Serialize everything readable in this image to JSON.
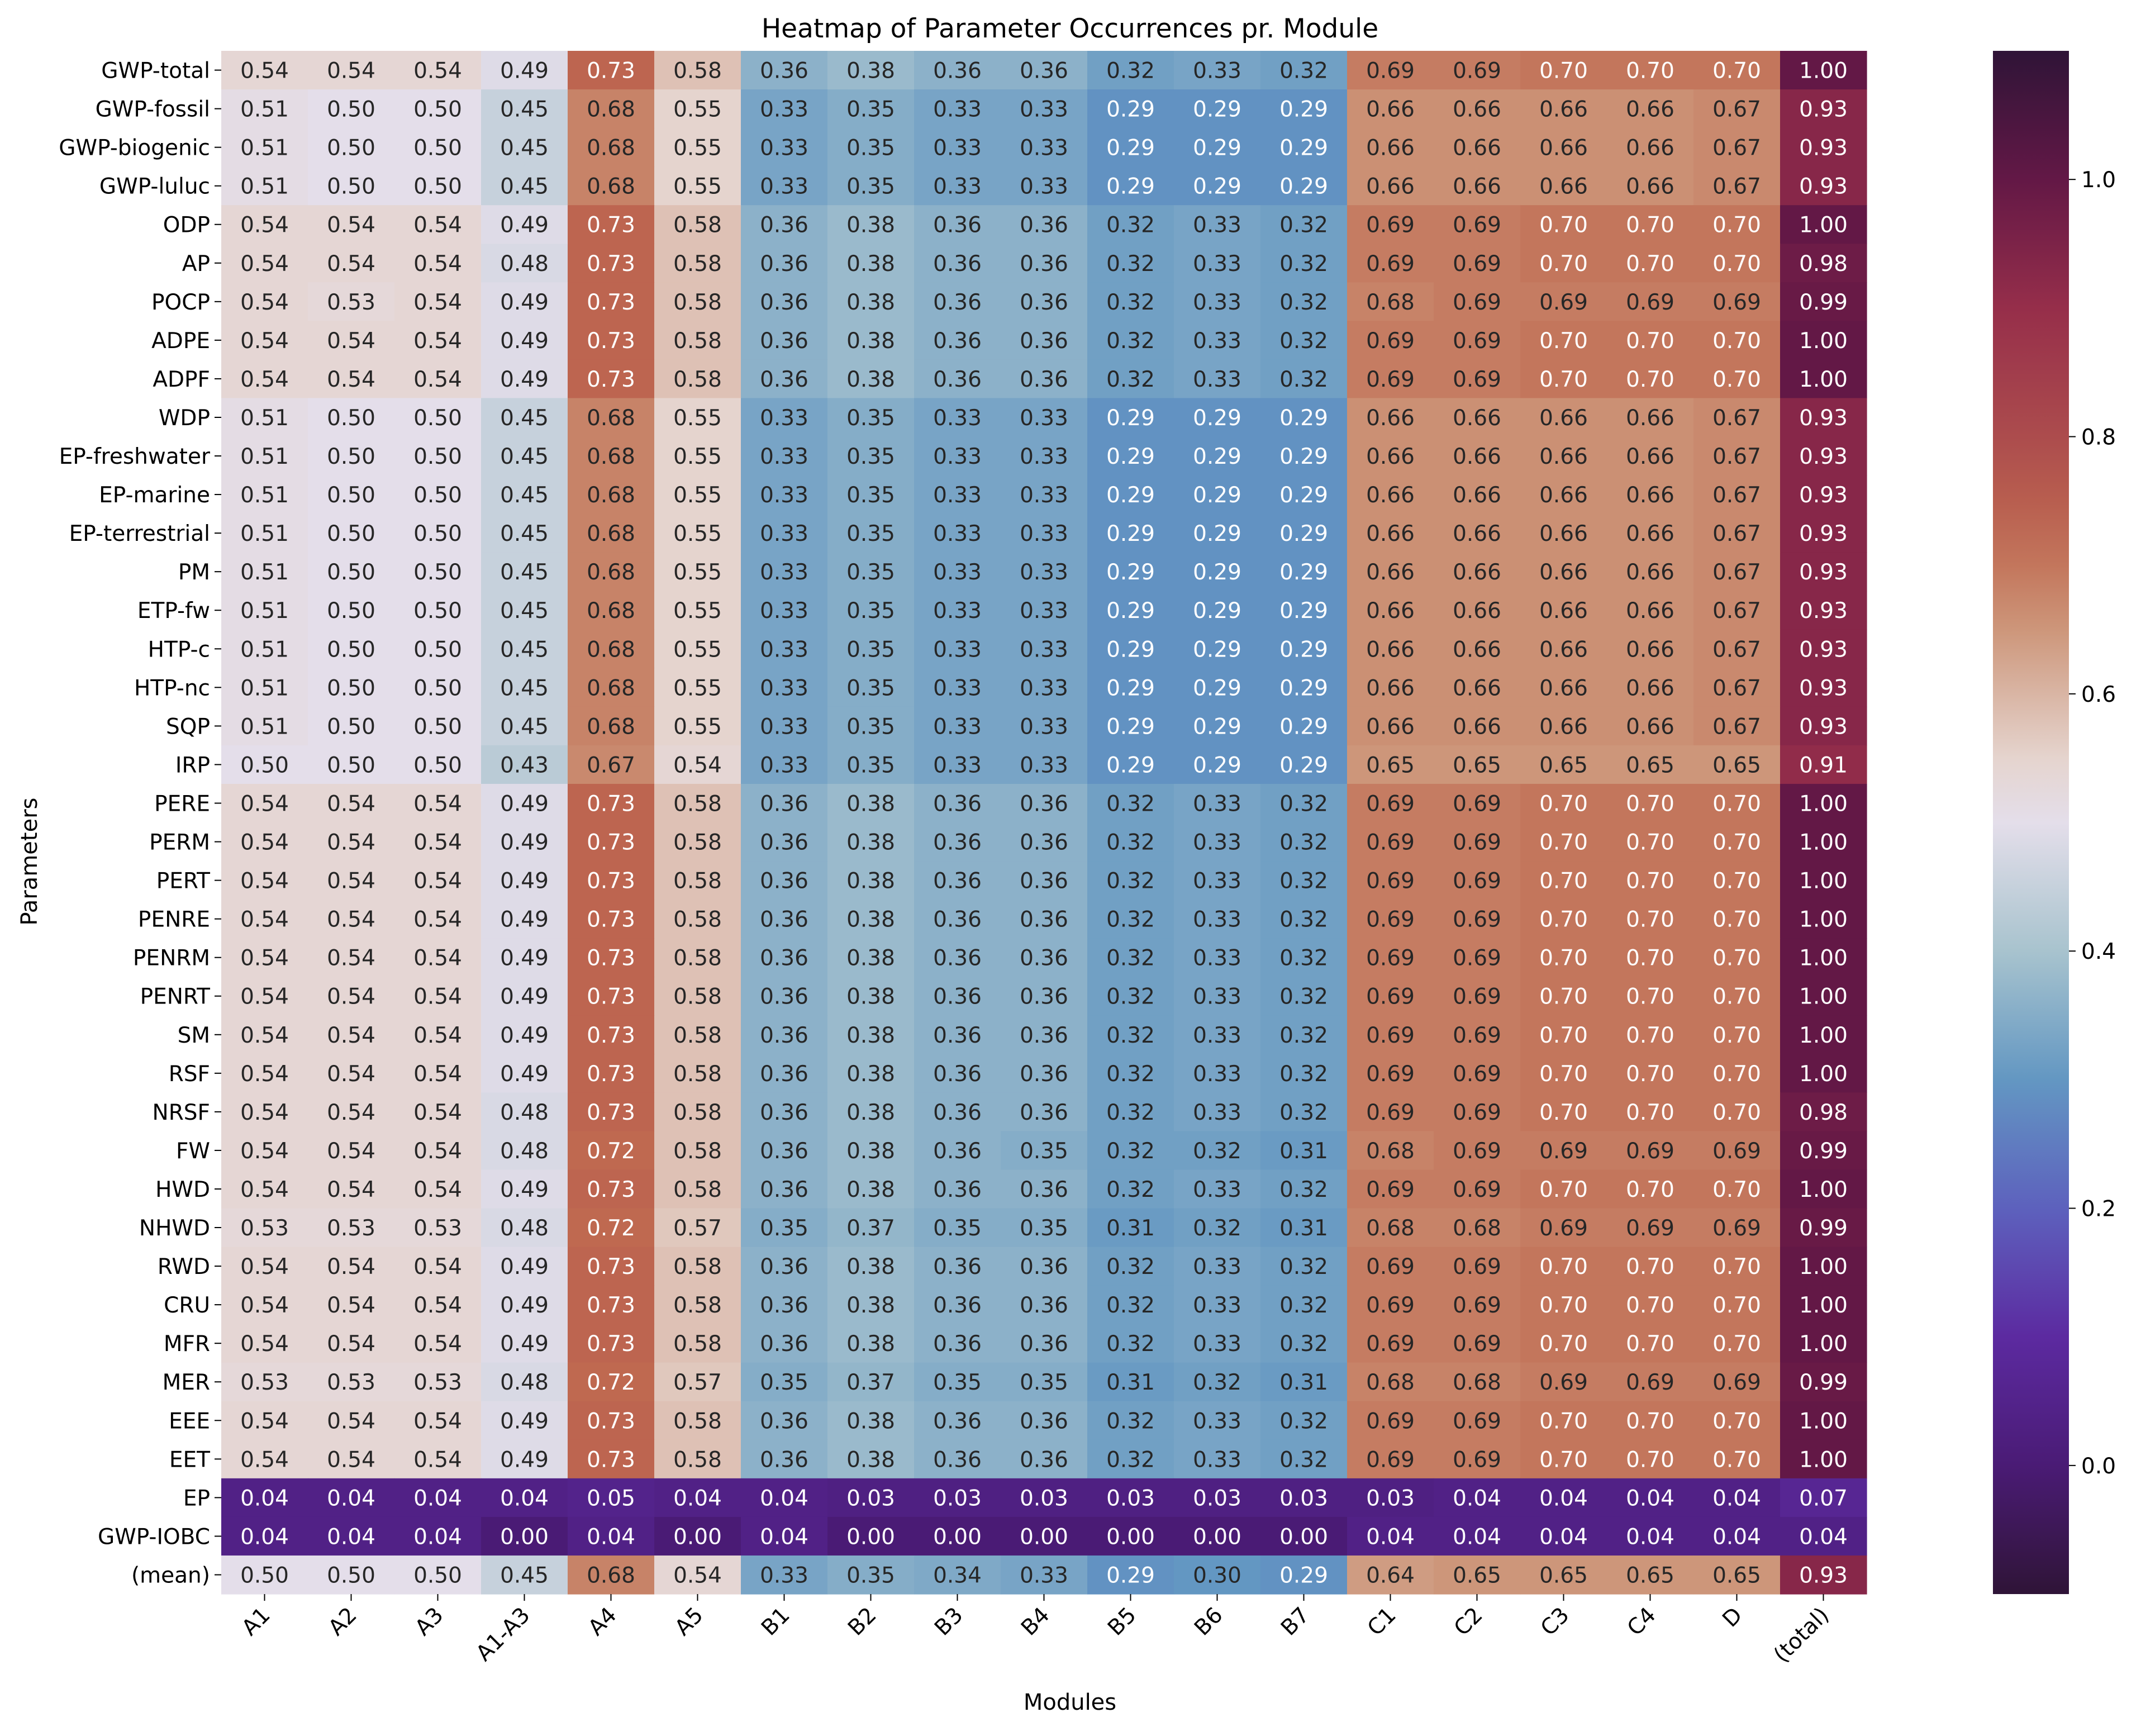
{
  "chart_data": {
    "type": "heatmap",
    "title": "Heatmap of Parameter Occurrences pr. Module",
    "xlabel": "Modules",
    "ylabel": "Parameters",
    "colormap": "twilight_shifted",
    "color_range": [
      -0.1,
      1.1
    ],
    "colorbar_ticks": [
      0.0,
      0.2,
      0.4,
      0.6,
      0.8,
      1.0
    ],
    "colorbar_tick_labels": [
      "0.0",
      "0.2",
      "0.4",
      "0.6",
      "0.8",
      "1.0"
    ],
    "columns": [
      "A1",
      "A2",
      "A3",
      "A1-A3",
      "A4",
      "A5",
      "B1",
      "B2",
      "B3",
      "B4",
      "B5",
      "B6",
      "B7",
      "C1",
      "C2",
      "C3",
      "C4",
      "D",
      "(total)"
    ],
    "rows": [
      "GWP-total",
      "GWP-fossil",
      "GWP-biogenic",
      "GWP-luluc",
      "ODP",
      "AP",
      "POCP",
      "ADPE",
      "ADPF",
      "WDP",
      "EP-freshwater",
      "EP-marine",
      "EP-terrestrial",
      "PM",
      "ETP-fw",
      "HTP-c",
      "HTP-nc",
      "SQP",
      "IRP",
      "PERE",
      "PERM",
      "PERT",
      "PENRE",
      "PENRM",
      "PENRT",
      "SM",
      "RSF",
      "NRSF",
      "FW",
      "HWD",
      "NHWD",
      "RWD",
      "CRU",
      "MFR",
      "MER",
      "EEE",
      "EET",
      "EP",
      "GWP-IOBC",
      "(mean)"
    ],
    "values": [
      [
        0.54,
        0.54,
        0.54,
        0.49,
        0.73,
        0.58,
        0.36,
        0.38,
        0.36,
        0.36,
        0.32,
        0.33,
        0.32,
        0.69,
        0.69,
        0.7,
        0.7,
        0.7,
        1.0
      ],
      [
        0.51,
        0.5,
        0.5,
        0.45,
        0.68,
        0.55,
        0.33,
        0.35,
        0.33,
        0.33,
        0.29,
        0.29,
        0.29,
        0.66,
        0.66,
        0.66,
        0.66,
        0.67,
        0.93
      ],
      [
        0.51,
        0.5,
        0.5,
        0.45,
        0.68,
        0.55,
        0.33,
        0.35,
        0.33,
        0.33,
        0.29,
        0.29,
        0.29,
        0.66,
        0.66,
        0.66,
        0.66,
        0.67,
        0.93
      ],
      [
        0.51,
        0.5,
        0.5,
        0.45,
        0.68,
        0.55,
        0.33,
        0.35,
        0.33,
        0.33,
        0.29,
        0.29,
        0.29,
        0.66,
        0.66,
        0.66,
        0.66,
        0.67,
        0.93
      ],
      [
        0.54,
        0.54,
        0.54,
        0.49,
        0.73,
        0.58,
        0.36,
        0.38,
        0.36,
        0.36,
        0.32,
        0.33,
        0.32,
        0.69,
        0.69,
        0.7,
        0.7,
        0.7,
        1.0
      ],
      [
        0.54,
        0.54,
        0.54,
        0.48,
        0.73,
        0.58,
        0.36,
        0.38,
        0.36,
        0.36,
        0.32,
        0.33,
        0.32,
        0.69,
        0.69,
        0.7,
        0.7,
        0.7,
        0.98
      ],
      [
        0.54,
        0.53,
        0.54,
        0.49,
        0.73,
        0.58,
        0.36,
        0.38,
        0.36,
        0.36,
        0.32,
        0.33,
        0.32,
        0.68,
        0.69,
        0.69,
        0.69,
        0.69,
        0.99
      ],
      [
        0.54,
        0.54,
        0.54,
        0.49,
        0.73,
        0.58,
        0.36,
        0.38,
        0.36,
        0.36,
        0.32,
        0.33,
        0.32,
        0.69,
        0.69,
        0.7,
        0.7,
        0.7,
        1.0
      ],
      [
        0.54,
        0.54,
        0.54,
        0.49,
        0.73,
        0.58,
        0.36,
        0.38,
        0.36,
        0.36,
        0.32,
        0.33,
        0.32,
        0.69,
        0.69,
        0.7,
        0.7,
        0.7,
        1.0
      ],
      [
        0.51,
        0.5,
        0.5,
        0.45,
        0.68,
        0.55,
        0.33,
        0.35,
        0.33,
        0.33,
        0.29,
        0.29,
        0.29,
        0.66,
        0.66,
        0.66,
        0.66,
        0.67,
        0.93
      ],
      [
        0.51,
        0.5,
        0.5,
        0.45,
        0.68,
        0.55,
        0.33,
        0.35,
        0.33,
        0.33,
        0.29,
        0.29,
        0.29,
        0.66,
        0.66,
        0.66,
        0.66,
        0.67,
        0.93
      ],
      [
        0.51,
        0.5,
        0.5,
        0.45,
        0.68,
        0.55,
        0.33,
        0.35,
        0.33,
        0.33,
        0.29,
        0.29,
        0.29,
        0.66,
        0.66,
        0.66,
        0.66,
        0.67,
        0.93
      ],
      [
        0.51,
        0.5,
        0.5,
        0.45,
        0.68,
        0.55,
        0.33,
        0.35,
        0.33,
        0.33,
        0.29,
        0.29,
        0.29,
        0.66,
        0.66,
        0.66,
        0.66,
        0.67,
        0.93
      ],
      [
        0.51,
        0.5,
        0.5,
        0.45,
        0.68,
        0.55,
        0.33,
        0.35,
        0.33,
        0.33,
        0.29,
        0.29,
        0.29,
        0.66,
        0.66,
        0.66,
        0.66,
        0.67,
        0.93
      ],
      [
        0.51,
        0.5,
        0.5,
        0.45,
        0.68,
        0.55,
        0.33,
        0.35,
        0.33,
        0.33,
        0.29,
        0.29,
        0.29,
        0.66,
        0.66,
        0.66,
        0.66,
        0.67,
        0.93
      ],
      [
        0.51,
        0.5,
        0.5,
        0.45,
        0.68,
        0.55,
        0.33,
        0.35,
        0.33,
        0.33,
        0.29,
        0.29,
        0.29,
        0.66,
        0.66,
        0.66,
        0.66,
        0.67,
        0.93
      ],
      [
        0.51,
        0.5,
        0.5,
        0.45,
        0.68,
        0.55,
        0.33,
        0.35,
        0.33,
        0.33,
        0.29,
        0.29,
        0.29,
        0.66,
        0.66,
        0.66,
        0.66,
        0.67,
        0.93
      ],
      [
        0.51,
        0.5,
        0.5,
        0.45,
        0.68,
        0.55,
        0.33,
        0.35,
        0.33,
        0.33,
        0.29,
        0.29,
        0.29,
        0.66,
        0.66,
        0.66,
        0.66,
        0.67,
        0.93
      ],
      [
        0.5,
        0.5,
        0.5,
        0.43,
        0.67,
        0.54,
        0.33,
        0.35,
        0.33,
        0.33,
        0.29,
        0.29,
        0.29,
        0.65,
        0.65,
        0.65,
        0.65,
        0.65,
        0.91
      ],
      [
        0.54,
        0.54,
        0.54,
        0.49,
        0.73,
        0.58,
        0.36,
        0.38,
        0.36,
        0.36,
        0.32,
        0.33,
        0.32,
        0.69,
        0.69,
        0.7,
        0.7,
        0.7,
        1.0
      ],
      [
        0.54,
        0.54,
        0.54,
        0.49,
        0.73,
        0.58,
        0.36,
        0.38,
        0.36,
        0.36,
        0.32,
        0.33,
        0.32,
        0.69,
        0.69,
        0.7,
        0.7,
        0.7,
        1.0
      ],
      [
        0.54,
        0.54,
        0.54,
        0.49,
        0.73,
        0.58,
        0.36,
        0.38,
        0.36,
        0.36,
        0.32,
        0.33,
        0.32,
        0.69,
        0.69,
        0.7,
        0.7,
        0.7,
        1.0
      ],
      [
        0.54,
        0.54,
        0.54,
        0.49,
        0.73,
        0.58,
        0.36,
        0.38,
        0.36,
        0.36,
        0.32,
        0.33,
        0.32,
        0.69,
        0.69,
        0.7,
        0.7,
        0.7,
        1.0
      ],
      [
        0.54,
        0.54,
        0.54,
        0.49,
        0.73,
        0.58,
        0.36,
        0.38,
        0.36,
        0.36,
        0.32,
        0.33,
        0.32,
        0.69,
        0.69,
        0.7,
        0.7,
        0.7,
        1.0
      ],
      [
        0.54,
        0.54,
        0.54,
        0.49,
        0.73,
        0.58,
        0.36,
        0.38,
        0.36,
        0.36,
        0.32,
        0.33,
        0.32,
        0.69,
        0.69,
        0.7,
        0.7,
        0.7,
        1.0
      ],
      [
        0.54,
        0.54,
        0.54,
        0.49,
        0.73,
        0.58,
        0.36,
        0.38,
        0.36,
        0.36,
        0.32,
        0.33,
        0.32,
        0.69,
        0.69,
        0.7,
        0.7,
        0.7,
        1.0
      ],
      [
        0.54,
        0.54,
        0.54,
        0.49,
        0.73,
        0.58,
        0.36,
        0.38,
        0.36,
        0.36,
        0.32,
        0.33,
        0.32,
        0.69,
        0.69,
        0.7,
        0.7,
        0.7,
        1.0
      ],
      [
        0.54,
        0.54,
        0.54,
        0.48,
        0.73,
        0.58,
        0.36,
        0.38,
        0.36,
        0.36,
        0.32,
        0.33,
        0.32,
        0.69,
        0.69,
        0.7,
        0.7,
        0.7,
        0.98
      ],
      [
        0.54,
        0.54,
        0.54,
        0.48,
        0.72,
        0.58,
        0.36,
        0.38,
        0.36,
        0.35,
        0.32,
        0.32,
        0.31,
        0.68,
        0.69,
        0.69,
        0.69,
        0.69,
        0.99
      ],
      [
        0.54,
        0.54,
        0.54,
        0.49,
        0.73,
        0.58,
        0.36,
        0.38,
        0.36,
        0.36,
        0.32,
        0.33,
        0.32,
        0.69,
        0.69,
        0.7,
        0.7,
        0.7,
        1.0
      ],
      [
        0.53,
        0.53,
        0.53,
        0.48,
        0.72,
        0.57,
        0.35,
        0.37,
        0.35,
        0.35,
        0.31,
        0.32,
        0.31,
        0.68,
        0.68,
        0.69,
        0.69,
        0.69,
        0.99
      ],
      [
        0.54,
        0.54,
        0.54,
        0.49,
        0.73,
        0.58,
        0.36,
        0.38,
        0.36,
        0.36,
        0.32,
        0.33,
        0.32,
        0.69,
        0.69,
        0.7,
        0.7,
        0.7,
        1.0
      ],
      [
        0.54,
        0.54,
        0.54,
        0.49,
        0.73,
        0.58,
        0.36,
        0.38,
        0.36,
        0.36,
        0.32,
        0.33,
        0.32,
        0.69,
        0.69,
        0.7,
        0.7,
        0.7,
        1.0
      ],
      [
        0.54,
        0.54,
        0.54,
        0.49,
        0.73,
        0.58,
        0.36,
        0.38,
        0.36,
        0.36,
        0.32,
        0.33,
        0.32,
        0.69,
        0.69,
        0.7,
        0.7,
        0.7,
        1.0
      ],
      [
        0.53,
        0.53,
        0.53,
        0.48,
        0.72,
        0.57,
        0.35,
        0.37,
        0.35,
        0.35,
        0.31,
        0.32,
        0.31,
        0.68,
        0.68,
        0.69,
        0.69,
        0.69,
        0.99
      ],
      [
        0.54,
        0.54,
        0.54,
        0.49,
        0.73,
        0.58,
        0.36,
        0.38,
        0.36,
        0.36,
        0.32,
        0.33,
        0.32,
        0.69,
        0.69,
        0.7,
        0.7,
        0.7,
        1.0
      ],
      [
        0.54,
        0.54,
        0.54,
        0.49,
        0.73,
        0.58,
        0.36,
        0.38,
        0.36,
        0.36,
        0.32,
        0.33,
        0.32,
        0.69,
        0.69,
        0.7,
        0.7,
        0.7,
        1.0
      ],
      [
        0.04,
        0.04,
        0.04,
        0.04,
        0.05,
        0.04,
        0.04,
        0.03,
        0.03,
        0.03,
        0.03,
        0.03,
        0.03,
        0.03,
        0.04,
        0.04,
        0.04,
        0.04,
        0.07
      ],
      [
        0.04,
        0.04,
        0.04,
        0.0,
        0.04,
        0.0,
        0.04,
        0.0,
        0.0,
        0.0,
        0.0,
        0.0,
        0.0,
        0.04,
        0.04,
        0.04,
        0.04,
        0.04,
        0.04
      ],
      [
        0.5,
        0.5,
        0.5,
        0.45,
        0.68,
        0.54,
        0.33,
        0.35,
        0.34,
        0.33,
        0.29,
        0.3,
        0.29,
        0.64,
        0.65,
        0.65,
        0.65,
        0.65,
        0.93
      ]
    ]
  }
}
